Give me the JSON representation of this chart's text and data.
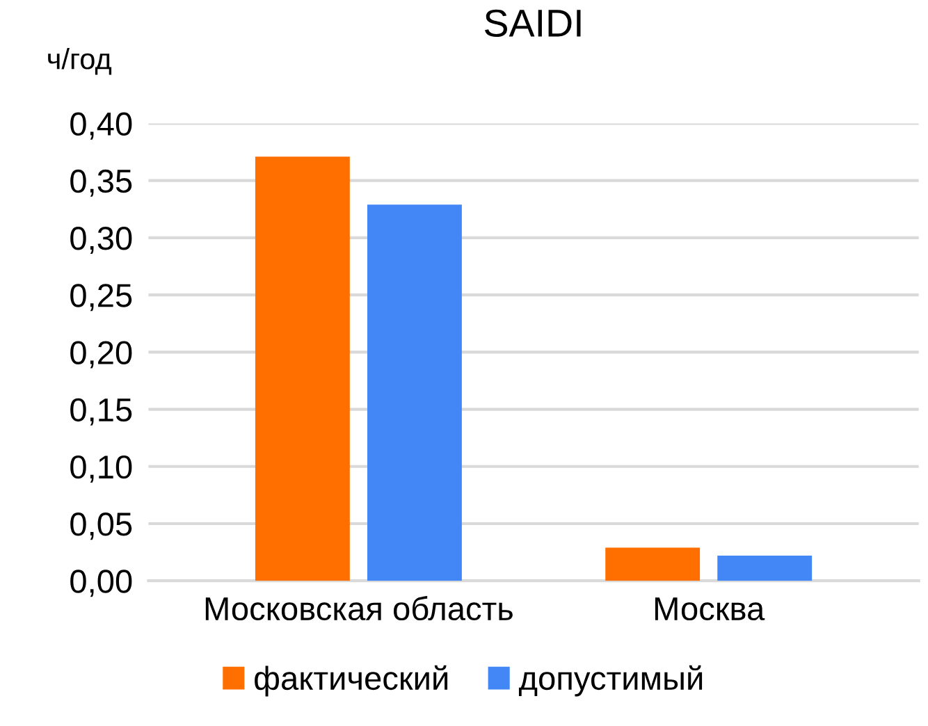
{
  "chart_data": {
    "type": "bar",
    "title": "SAIDI",
    "ylabel": "ч/год",
    "categories": [
      "Московская область",
      "Москва"
    ],
    "series": [
      {
        "name": "фактический",
        "color": "#ff6f00",
        "values": [
          0.371,
          0.029
        ]
      },
      {
        "name": "допустимый",
        "color": "#4287f5",
        "values": [
          0.329,
          0.022
        ]
      }
    ],
    "ylim": [
      0,
      0.4
    ],
    "yticks": [
      {
        "value": 0,
        "label": "0,00"
      },
      {
        "value": 0.05,
        "label": "0,05"
      },
      {
        "value": 0.1,
        "label": "0,10"
      },
      {
        "value": 0.15,
        "label": "0,15"
      },
      {
        "value": 0.2,
        "label": "0,20"
      },
      {
        "value": 0.25,
        "label": "0,25"
      },
      {
        "value": 0.3,
        "label": "0,30"
      },
      {
        "value": 0.35,
        "label": "0,35"
      },
      {
        "value": 0.4,
        "label": "0,40"
      }
    ],
    "grid": "y",
    "legend": "bottom"
  }
}
